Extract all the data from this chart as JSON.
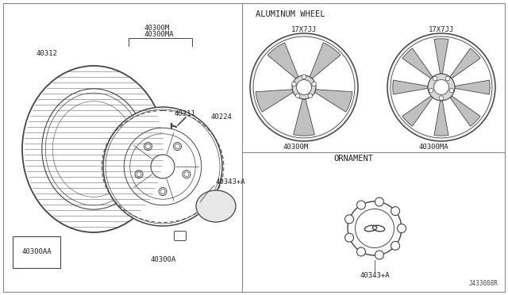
{
  "bg_color": "#ffffff",
  "line_color": "#444444",
  "border_color": "#888888",
  "title_aluminum": "ALUMINUM WHEEL",
  "title_ornament": "ORNAMENT",
  "label_17x7jj_left": "17X7JJ",
  "label_17x7jj_right": "17X7JJ",
  "label_40300M": "40300M",
  "label_40300MA": "40300MA",
  "label_40343A_main": "40343+A",
  "label_40343A_ornament": "40343+A",
  "label_40312": "40312",
  "label_40300M_top": "40300M",
  "label_40300MA_top": "40300MA",
  "label_40311": "40311",
  "label_40224": "40224",
  "label_40300AA": "40300AA",
  "label_40300A": "40300A",
  "label_J": "J433008R",
  "font_size_label": 6.5,
  "font_size_section": 7.5,
  "font_size_tiny": 5.5
}
